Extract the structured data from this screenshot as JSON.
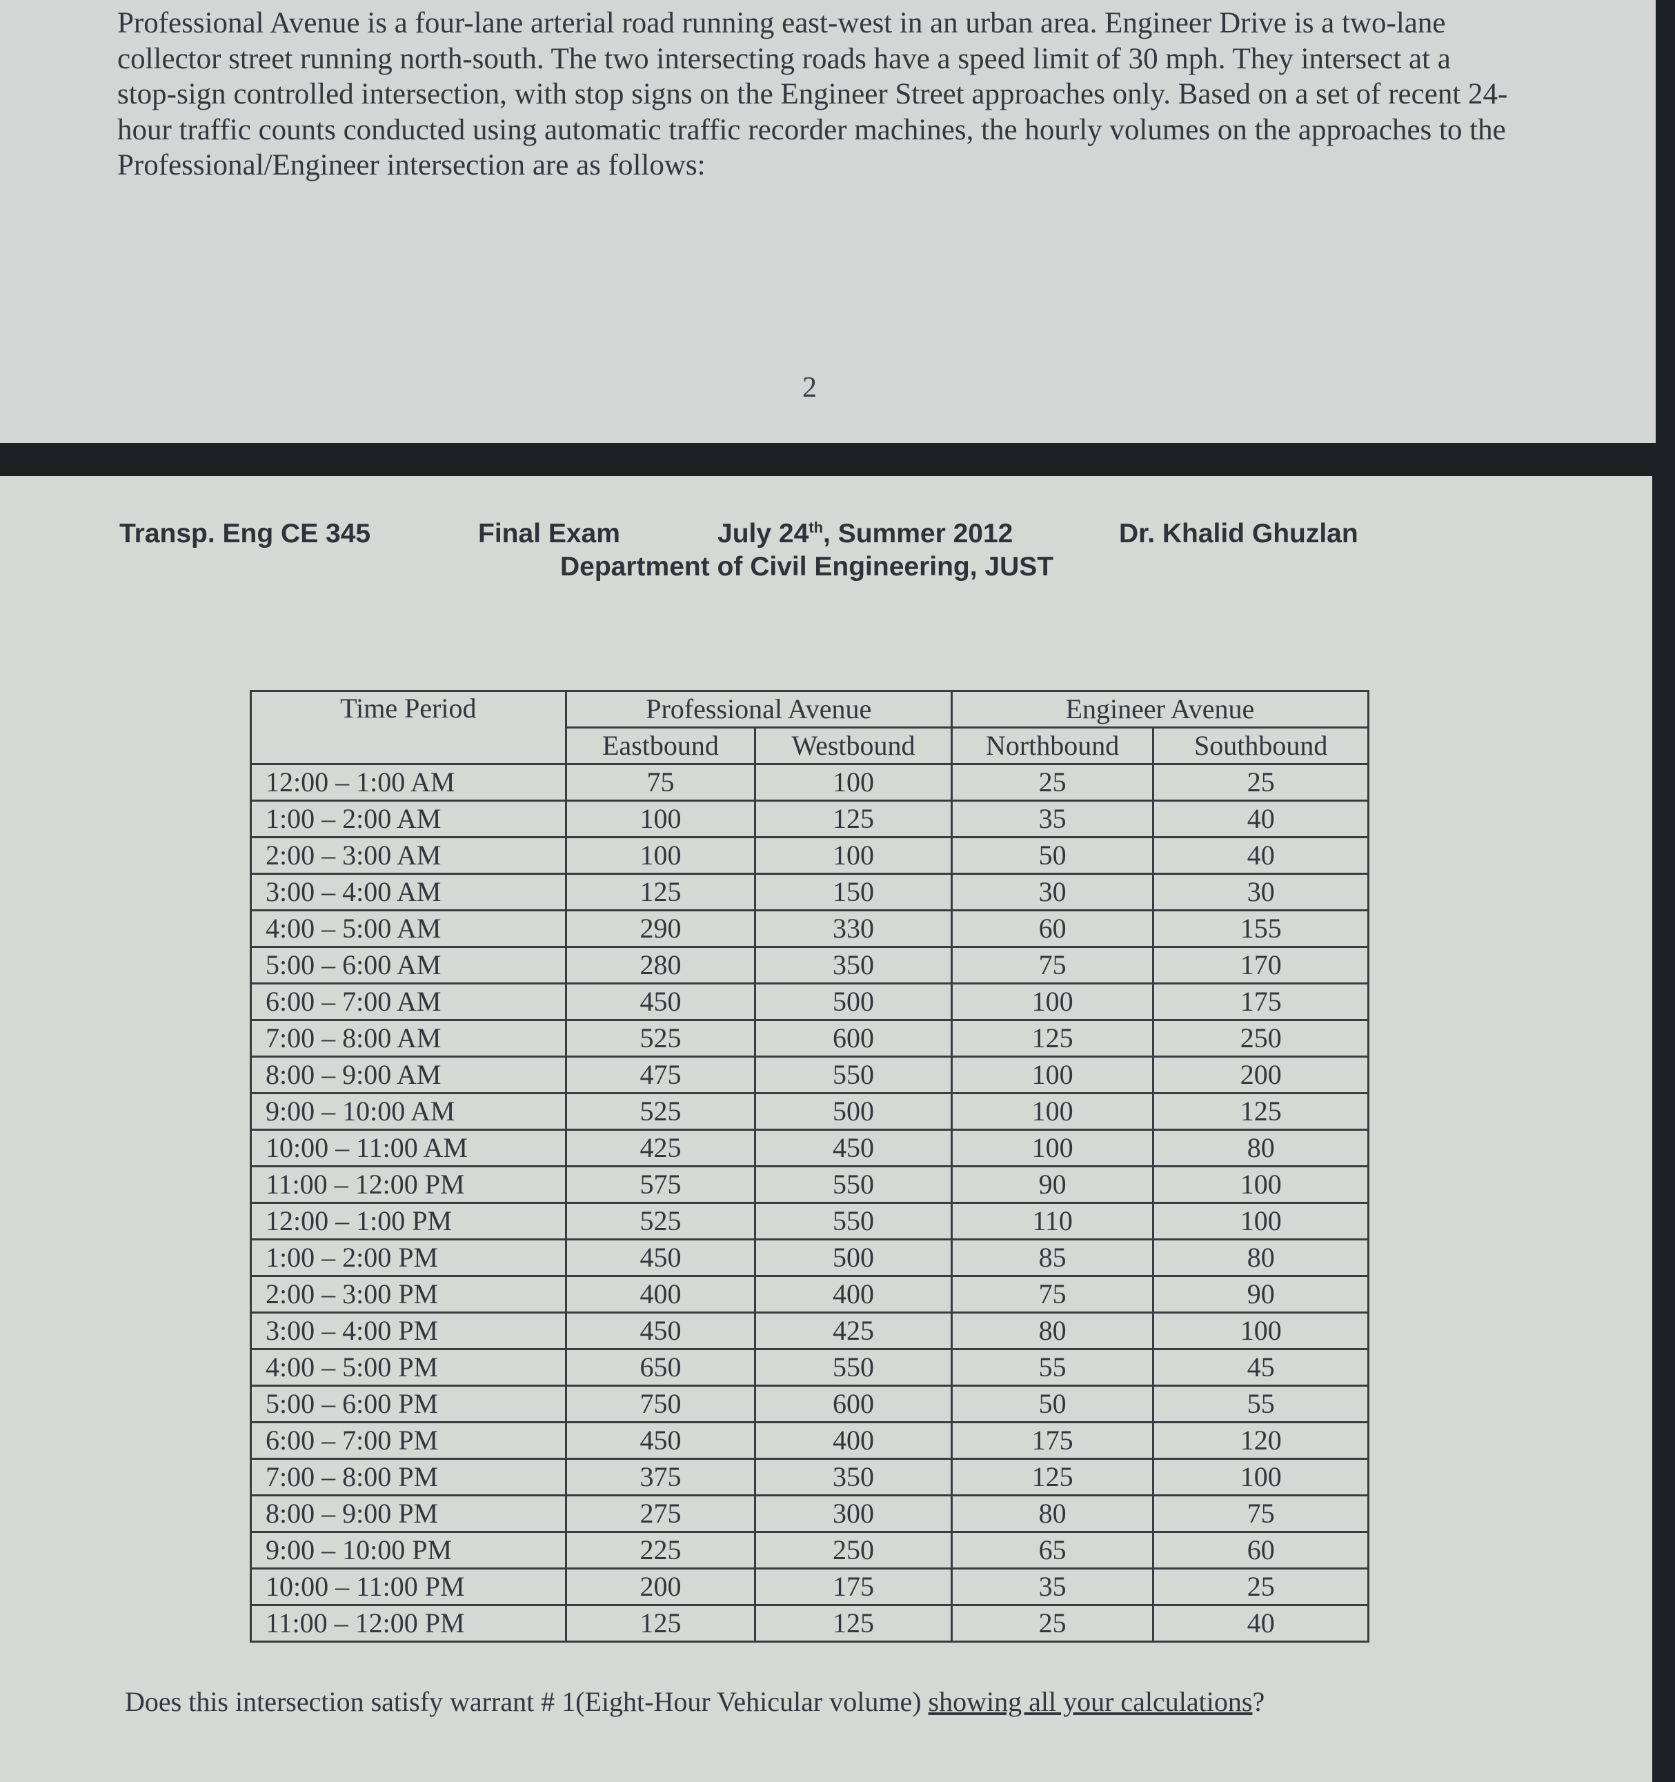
{
  "intro_paragraph": "Professional Avenue is a four-lane arterial road running east-west in an urban area. Engineer Drive is a two-lane collector street running north-south. The two intersecting roads have a speed limit of 30 mph. They intersect at a stop-sign controlled intersection, with stop signs on the Engineer Street approaches only. Based on a set of recent 24-hour traffic counts conducted using automatic traffic recorder machines, the hourly volumes on the approaches to the Professional/Engineer intersection are as follows:",
  "page_number": "2",
  "header": {
    "course": "Transp. Eng CE 345",
    "exam": "Final Exam",
    "date_prefix": "July 24",
    "date_sup": "th",
    "date_suffix": ", Summer 2012",
    "instructor": "Dr. Khalid Ghuzlan",
    "department": "Department of Civil Engineering, JUST"
  },
  "table": {
    "time_header": "Time Period",
    "group1": "Professional Avenue",
    "group2": "Engineer Avenue",
    "columns": [
      "Eastbound",
      "Westbound",
      "Northbound",
      "Southbound"
    ],
    "rows": [
      [
        "12:00 – 1:00 AM",
        "75",
        "100",
        "25",
        "25"
      ],
      [
        "1:00 – 2:00 AM",
        "100",
        "125",
        "35",
        "40"
      ],
      [
        "2:00 – 3:00 AM",
        "100",
        "100",
        "50",
        "40"
      ],
      [
        "3:00 – 4:00 AM",
        "125",
        "150",
        "30",
        "30"
      ],
      [
        "4:00 – 5:00 AM",
        "290",
        "330",
        "60",
        "155"
      ],
      [
        "5:00 – 6:00 AM",
        "280",
        "350",
        "75",
        "170"
      ],
      [
        "6:00 – 7:00 AM",
        "450",
        "500",
        "100",
        "175"
      ],
      [
        "7:00 – 8:00 AM",
        "525",
        "600",
        "125",
        "250"
      ],
      [
        "8:00 – 9:00 AM",
        "475",
        "550",
        "100",
        "200"
      ],
      [
        "9:00 – 10:00 AM",
        "525",
        "500",
        "100",
        "125"
      ],
      [
        "10:00 – 11:00 AM",
        "425",
        "450",
        "100",
        "80"
      ],
      [
        "11:00 – 12:00 PM",
        "575",
        "550",
        "90",
        "100"
      ],
      [
        "12:00 – 1:00 PM",
        "525",
        "550",
        "110",
        "100"
      ],
      [
        "1:00 – 2:00 PM",
        "450",
        "500",
        "85",
        "80"
      ],
      [
        "2:00 – 3:00 PM",
        "400",
        "400",
        "75",
        "90"
      ],
      [
        "3:00 – 4:00 PM",
        "450",
        "425",
        "80",
        "100"
      ],
      [
        "4:00 – 5:00 PM",
        "650",
        "550",
        "55",
        "45"
      ],
      [
        "5:00 – 6:00 PM",
        "750",
        "600",
        "50",
        "55"
      ],
      [
        "6:00 – 7:00 PM",
        "450",
        "400",
        "175",
        "120"
      ],
      [
        "7:00 – 8:00 PM",
        "375",
        "350",
        "125",
        "100"
      ],
      [
        "8:00 – 9:00 PM",
        "275",
        "300",
        "80",
        "75"
      ],
      [
        "9:00 – 10:00 PM",
        "225",
        "250",
        "65",
        "60"
      ],
      [
        "10:00 – 11:00 PM",
        "200",
        "175",
        "35",
        "25"
      ],
      [
        "11:00 – 12:00 PM",
        "125",
        "125",
        "25",
        "40"
      ]
    ]
  },
  "question": {
    "text": "Does this intersection satisfy warrant # 1(Eight-Hour Vehicular volume) ",
    "underlined": "showing all your calculations",
    "end": "?"
  }
}
